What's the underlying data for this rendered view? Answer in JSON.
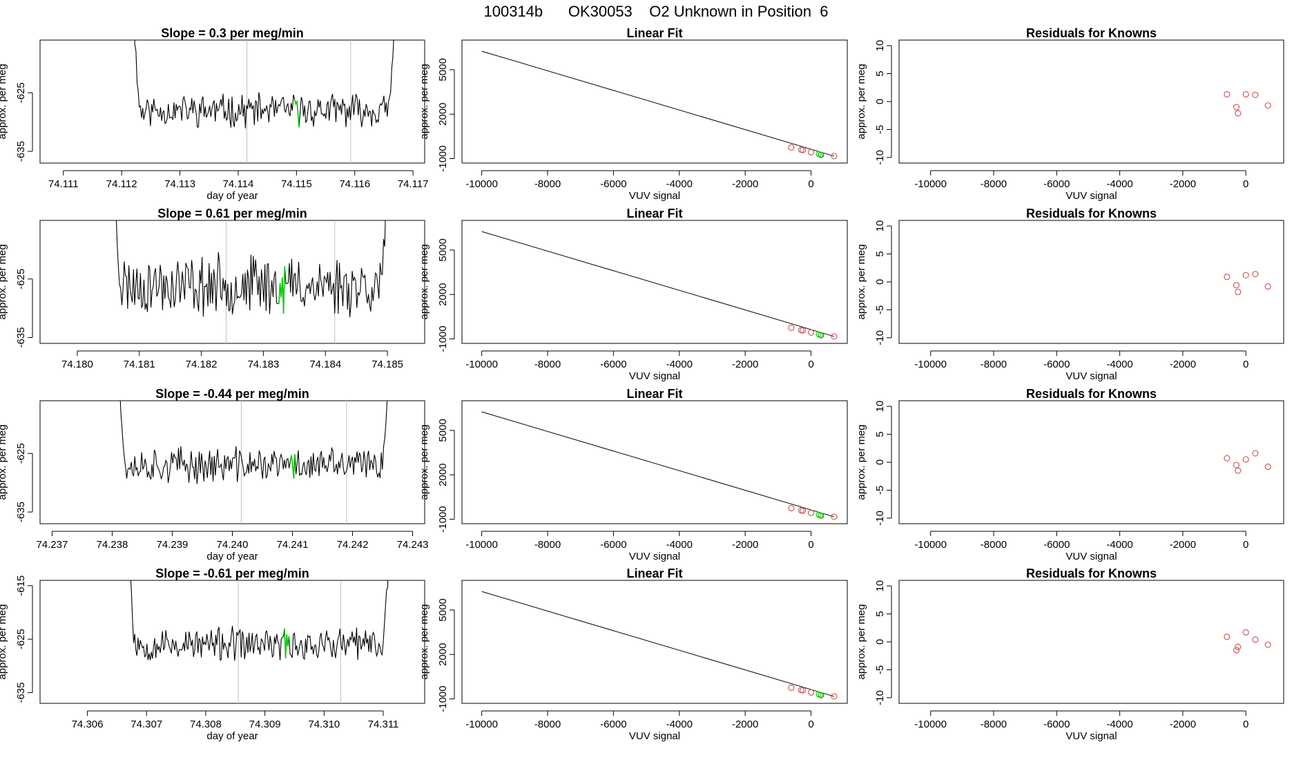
{
  "figure_title": "100314b      OK30053    O2 Unknown in Position  6",
  "colors": {
    "trace": "#000000",
    "highlight": "#00cc00",
    "known_point": "#cd5c5c",
    "marker_line": "#bfbfbf"
  },
  "chart_data": [
    {
      "type": "line",
      "title": "Slope =  0.3  per meg/min",
      "xlabel": "day of year",
      "ylabel": "approx. per meg",
      "xlim": [
        74.1106,
        74.1172
      ],
      "ylim": [
        -637,
        -616
      ],
      "xticks": [
        74.111,
        74.112,
        74.113,
        74.114,
        74.115,
        74.116,
        74.117
      ],
      "xtick_labels": [
        "74.111",
        "74.112",
        "74.113",
        "74.114",
        "74.115",
        "74.116",
        "74.117"
      ],
      "yticks": [
        -635,
        -625
      ],
      "ytick_labels": [
        "-635",
        "-625"
      ],
      "t_start": 74.11215,
      "t_end": 74.11675,
      "vlines": [
        74.11415,
        74.11593
      ],
      "highlight": [
        74.11495,
        74.11505
      ],
      "level": -628,
      "noise": 2.3,
      "edge": 40,
      "seed": 11
    },
    {
      "type": "line",
      "title": "Linear Fit",
      "xlabel": "VUV signal",
      "ylabel": "approx. per meg",
      "xlim": [
        -10600,
        1100
      ],
      "ylim": [
        -1300,
        7000
      ],
      "xticks": [
        -10000,
        -8000,
        -6000,
        -4000,
        -2000,
        0
      ],
      "xtick_labels": [
        "-10000",
        "-8000",
        "-6000",
        "-4000",
        "-2000",
        "0"
      ],
      "yticks": [
        -1000,
        2000,
        5000
      ],
      "ytick_labels": [
        "-1000",
        "2000",
        "5000"
      ],
      "fit_line": {
        "x": [
          -10000,
          700
        ],
        "y": [
          6250,
          -830
        ]
      },
      "known_points": {
        "x": [
          -600,
          -300,
          -250,
          0,
          300,
          700
        ],
        "y": [
          -250,
          -400,
          -420,
          -570,
          -750,
          -830
        ]
      },
      "unknown_points": {
        "x": [
          230,
          290
        ],
        "y": [
          -700,
          -740
        ]
      }
    },
    {
      "type": "scatter",
      "title": "Residuals for Knowns",
      "xlabel": "VUV signal",
      "ylabel": "approx. per meg",
      "xlim": [
        -11000,
        1200
      ],
      "ylim": [
        -11,
        11
      ],
      "xticks": [
        -10000,
        -8000,
        -6000,
        -4000,
        -2000,
        0
      ],
      "xtick_labels": [
        "-10000",
        "-8000",
        "-6000",
        "-4000",
        "-2000",
        "0"
      ],
      "yticks": [
        -10,
        -5,
        0,
        5,
        10
      ],
      "ytick_labels": [
        "-10",
        "-5",
        "0",
        "5",
        "10"
      ],
      "x": [
        -600,
        -300,
        -250,
        0,
        300,
        700
      ],
      "y": [
        1.3,
        -1.0,
        -2.1,
        1.3,
        1.2,
        -0.7
      ]
    },
    {
      "type": "line",
      "title": "Slope =  0.61  per meg/min",
      "xlabel": "",
      "ylabel": "approx. per meg",
      "xlim": [
        74.1794,
        74.1856
      ],
      "ylim": [
        -636,
        -615
      ],
      "xticks": [
        74.18,
        74.181,
        74.182,
        74.183,
        74.184,
        74.185
      ],
      "xtick_labels": [
        "74.180",
        "74.181",
        "74.182",
        "74.183",
        "74.184",
        "74.185"
      ],
      "yticks": [
        -635,
        -625
      ],
      "ytick_labels": [
        "-635",
        "-625"
      ],
      "t_start": 74.18055,
      "t_end": 74.18505,
      "vlines": [
        74.1824,
        74.18415
      ],
      "highlight": [
        74.18325,
        74.18335
      ],
      "level": -626,
      "noise": 4.2,
      "edge": 40,
      "seed": 23
    },
    {
      "type": "line",
      "title": "Linear Fit",
      "xlabel": "VUV signal",
      "ylabel": "approx. per meg",
      "xlim": [
        -10600,
        1100
      ],
      "ylim": [
        -1300,
        7000
      ],
      "xticks": [
        -10000,
        -8000,
        -6000,
        -4000,
        -2000,
        0
      ],
      "xtick_labels": [
        "-10000",
        "-8000",
        "-6000",
        "-4000",
        "-2000",
        "0"
      ],
      "yticks": [
        -1000,
        2000,
        5000
      ],
      "ytick_labels": [
        "-1000",
        "2000",
        "5000"
      ],
      "fit_line": {
        "x": [
          -10000,
          700
        ],
        "y": [
          6250,
          -830
        ]
      },
      "known_points": {
        "x": [
          -600,
          -300,
          -250,
          0,
          300,
          700
        ],
        "y": [
          -250,
          -400,
          -420,
          -570,
          -750,
          -830
        ]
      },
      "unknown_points": {
        "x": [
          230,
          290
        ],
        "y": [
          -700,
          -740
        ]
      }
    },
    {
      "type": "scatter",
      "title": "Residuals for Knowns",
      "xlabel": "VUV signal",
      "ylabel": "approx. per meg",
      "xlim": [
        -11000,
        1200
      ],
      "ylim": [
        -11,
        11
      ],
      "xticks": [
        -10000,
        -8000,
        -6000,
        -4000,
        -2000,
        0
      ],
      "xtick_labels": [
        "-10000",
        "-8000",
        "-6000",
        "-4000",
        "-2000",
        "0"
      ],
      "yticks": [
        -10,
        -5,
        0,
        5,
        10
      ],
      "ytick_labels": [
        "-10",
        "-5",
        "0",
        "5",
        "10"
      ],
      "x": [
        -600,
        -300,
        -250,
        0,
        300,
        700
      ],
      "y": [
        0.9,
        -0.6,
        -1.8,
        1.2,
        1.4,
        -0.8
      ]
    },
    {
      "type": "line",
      "title": "Slope =  -0.44  per meg/min",
      "xlabel": "day of year",
      "ylabel": "approx. per meg",
      "xlim": [
        74.2368,
        74.2432
      ],
      "ylim": [
        -637,
        -616
      ],
      "xticks": [
        74.237,
        74.238,
        74.239,
        74.24,
        74.241,
        74.242,
        74.243
      ],
      "xtick_labels": [
        "74.237",
        "74.238",
        "74.239",
        "74.240",
        "74.241",
        "74.242",
        "74.243"
      ],
      "yticks": [
        -635,
        -625
      ],
      "ytick_labels": [
        "-635",
        "-625"
      ],
      "t_start": 74.23805,
      "t_end": 74.24265,
      "vlines": [
        74.24015,
        74.2419
      ],
      "highlight": [
        74.24095,
        74.24105
      ],
      "level": -627,
      "noise": 2.5,
      "edge": 40,
      "seed": 37
    },
    {
      "type": "line",
      "title": "Linear Fit",
      "xlabel": "VUV signal",
      "ylabel": "approx. per meg",
      "xlim": [
        -10600,
        1100
      ],
      "ylim": [
        -1300,
        7000
      ],
      "xticks": [
        -10000,
        -8000,
        -6000,
        -4000,
        -2000,
        0
      ],
      "xtick_labels": [
        "-10000",
        "-8000",
        "-6000",
        "-4000",
        "-2000",
        "0"
      ],
      "yticks": [
        -1000,
        2000,
        5000
      ],
      "ytick_labels": [
        "-1000",
        "2000",
        "5000"
      ],
      "fit_line": {
        "x": [
          -10000,
          700
        ],
        "y": [
          6250,
          -830
        ]
      },
      "known_points": {
        "x": [
          -600,
          -300,
          -250,
          0,
          300,
          700
        ],
        "y": [
          -250,
          -400,
          -420,
          -570,
          -750,
          -830
        ]
      },
      "unknown_points": {
        "x": [
          230,
          290
        ],
        "y": [
          -700,
          -740
        ]
      }
    },
    {
      "type": "scatter",
      "title": "Residuals for Knowns",
      "xlabel": "VUV signal",
      "ylabel": "approx. per meg",
      "xlim": [
        -11000,
        1200
      ],
      "ylim": [
        -11,
        11
      ],
      "xticks": [
        -10000,
        -8000,
        -6000,
        -4000,
        -2000,
        0
      ],
      "xtick_labels": [
        "-10000",
        "-8000",
        "-6000",
        "-4000",
        "-2000",
        "0"
      ],
      "yticks": [
        -10,
        -5,
        0,
        5,
        10
      ],
      "ytick_labels": [
        "-10",
        "-5",
        "0",
        "5",
        "10"
      ],
      "x": [
        -600,
        -300,
        -250,
        0,
        300,
        700
      ],
      "y": [
        0.7,
        -0.5,
        -1.5,
        0.5,
        1.6,
        -0.8
      ]
    },
    {
      "type": "line",
      "title": "Slope =  -0.61  per meg/min",
      "xlabel": "day of year",
      "ylabel": "approx. per meg",
      "xlim": [
        74.3052,
        74.3117
      ],
      "ylim": [
        -637,
        -614
      ],
      "xticks": [
        74.306,
        74.307,
        74.308,
        74.309,
        74.31,
        74.311
      ],
      "xtick_labels": [
        "74.306",
        "74.307",
        "74.308",
        "74.309",
        "74.310",
        "74.311"
      ],
      "yticks": [
        -635,
        -625,
        -615
      ],
      "ytick_labels": [
        "-635",
        "-625",
        "-615"
      ],
      "t_start": 74.30665,
      "t_end": 74.31115,
      "vlines": [
        74.30855,
        74.31028
      ],
      "highlight": [
        74.30932,
        74.30942
      ],
      "level": -626,
      "noise": 2.6,
      "edge": 40,
      "seed": 53
    },
    {
      "type": "line",
      "title": "Linear Fit",
      "xlabel": "VUV signal",
      "ylabel": "approx. per meg",
      "xlim": [
        -10600,
        1100
      ],
      "ylim": [
        -1300,
        7000
      ],
      "xticks": [
        -10000,
        -8000,
        -6000,
        -4000,
        -2000,
        0
      ],
      "xtick_labels": [
        "-10000",
        "-8000",
        "-6000",
        "-4000",
        "-2000",
        "0"
      ],
      "yticks": [
        -1000,
        2000,
        5000
      ],
      "ytick_labels": [
        "-1000",
        "2000",
        "5000"
      ],
      "fit_line": {
        "x": [
          -10000,
          700
        ],
        "y": [
          6250,
          -830
        ]
      },
      "known_points": {
        "x": [
          -600,
          -300,
          -250,
          0,
          300,
          700
        ],
        "y": [
          -250,
          -400,
          -420,
          -570,
          -750,
          -830
        ]
      },
      "unknown_points": {
        "x": [
          230,
          290
        ],
        "y": [
          -700,
          -740
        ]
      }
    },
    {
      "type": "scatter",
      "title": "Residuals for Knowns",
      "xlabel": "VUV signal",
      "ylabel": "approx. per meg",
      "xlim": [
        -11000,
        1200
      ],
      "ylim": [
        -11,
        11
      ],
      "xticks": [
        -10000,
        -8000,
        -6000,
        -4000,
        -2000,
        0
      ],
      "xtick_labels": [
        "-10000",
        "-8000",
        "-6000",
        "-4000",
        "-2000",
        "0"
      ],
      "yticks": [
        -10,
        -5,
        0,
        5,
        10
      ],
      "ytick_labels": [
        "-10",
        "-5",
        "0",
        "5",
        "10"
      ],
      "x": [
        -600,
        -300,
        -250,
        0,
        300,
        700
      ],
      "y": [
        0.9,
        -1.5,
        -0.9,
        1.7,
        0.4,
        -0.5
      ]
    }
  ]
}
